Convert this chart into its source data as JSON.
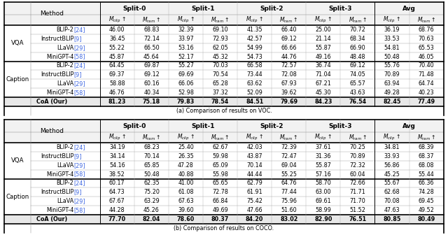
{
  "title_a": "(a) Comparison of results on VOC.",
  "title_b": "(b) Comparison of results on COCO.",
  "methods": [
    "BLIP-2 [24]",
    "InstructBLIP [9]",
    "LLaVA [29]",
    "MiniGPT-4 [58]"
  ],
  "voc_data": {
    "VQA": [
      [
        46.0,
        68.83,
        32.39,
        69.1,
        41.35,
        66.4,
        25.0,
        70.72,
        36.19,
        68.76
      ],
      [
        36.45,
        72.14,
        33.97,
        72.93,
        42.57,
        69.12,
        21.14,
        68.34,
        33.53,
        70.63
      ],
      [
        55.22,
        66.5,
        53.16,
        62.05,
        54.99,
        66.66,
        55.87,
        66.9,
        54.81,
        65.53
      ],
      [
        45.87,
        45.64,
        52.17,
        45.32,
        54.73,
        44.76,
        49.16,
        48.48,
        50.48,
        46.05
      ]
    ],
    "Caption": [
      [
        64.45,
        69.87,
        55.27,
        70.03,
        66.58,
        72.57,
        36.74,
        69.12,
        55.76,
        70.4
      ],
      [
        69.37,
        69.12,
        69.69,
        70.54,
        73.44,
        72.08,
        71.04,
        74.05,
        70.89,
        71.48
      ],
      [
        58.88,
        60.16,
        66.06,
        65.28,
        63.62,
        67.93,
        67.21,
        65.57,
        63.94,
        64.74
      ],
      [
        46.76,
        40.34,
        52.98,
        37.32,
        52.09,
        39.62,
        45.3,
        43.63,
        49.28,
        40.23
      ]
    ],
    "CoA": [
      81.23,
      75.18,
      79.83,
      78.54,
      84.51,
      79.69,
      84.23,
      76.54,
      82.45,
      77.49
    ]
  },
  "coco_data": {
    "VQA": [
      [
        34.19,
        68.23,
        25.4,
        62.67,
        42.03,
        72.39,
        37.61,
        70.25,
        34.81,
        68.39
      ],
      [
        34.14,
        70.14,
        26.35,
        59.98,
        43.87,
        72.47,
        31.36,
        70.89,
        33.93,
        68.37
      ],
      [
        54.16,
        65.85,
        47.28,
        65.09,
        70.14,
        69.04,
        55.87,
        72.32,
        56.86,
        68.08
      ],
      [
        38.52,
        50.48,
        40.88,
        55.98,
        44.44,
        55.25,
        57.16,
        60.04,
        45.25,
        55.44
      ]
    ],
    "Caption": [
      [
        60.17,
        62.35,
        41.0,
        65.65,
        62.79,
        64.76,
        58.7,
        72.66,
        55.67,
        66.36
      ],
      [
        64.73,
        75.2,
        61.08,
        72.78,
        61.91,
        77.44,
        63.0,
        71.71,
        62.68,
        74.28
      ],
      [
        67.67,
        63.29,
        67.63,
        66.84,
        75.42,
        75.96,
        69.61,
        71.7,
        70.08,
        69.45
      ],
      [
        44.28,
        45.26,
        39.6,
        49.69,
        47.66,
        51.6,
        58.99,
        51.52,
        47.63,
        49.52
      ]
    ],
    "CoA": [
      77.7,
      82.04,
      78.6,
      80.37,
      84.2,
      83.02,
      82.9,
      76.51,
      80.85,
      80.49
    ]
  },
  "ref_color": "#4169E1",
  "bg_header": "#f2f2f2",
  "bg_white": "#ffffff",
  "bg_coa": "#e8e8e8",
  "lw_thick": 1.2,
  "lw_mid": 0.7,
  "lw_thin": 0.35
}
